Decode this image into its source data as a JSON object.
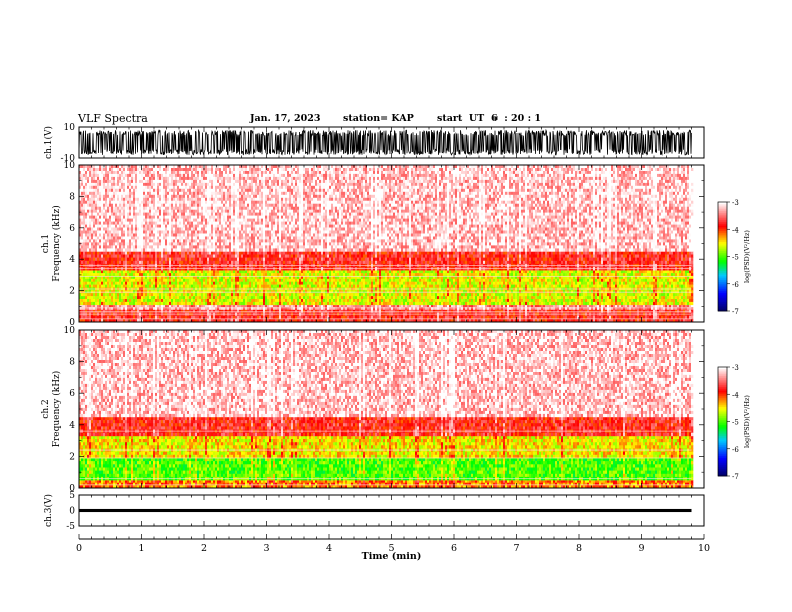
{
  "header": {
    "title": "VLF Spectra",
    "date": "Jan. 17, 2023",
    "station": "station= KAP",
    "start_label": "start  UT  =",
    "start_value": "6  : 20 : 1"
  },
  "chart_data": [
    {
      "type": "line",
      "panel": "ch1-waveform",
      "ylabel": "ch.1(V)",
      "ylim": [
        -10,
        10
      ],
      "yticks": [
        "10",
        "-10"
      ],
      "xlim": [
        0,
        10
      ],
      "data_extent_min": 9.8,
      "description_values": {
        "typical_min": -8,
        "typical_max": 8
      }
    },
    {
      "type": "heatmap",
      "panel": "ch1-spectrogram",
      "ylabel": "ch.1\nFrequency  (kHz)",
      "ylabel_lines": [
        "ch.1",
        "Frequency  (kHz)"
      ],
      "ylim": [
        0,
        10
      ],
      "yticks": [
        "0",
        "2",
        "4",
        "6",
        "8",
        "10"
      ],
      "xlim": [
        0,
        10
      ],
      "colorbar": {
        "label": "log(PSD)(V²/Hz)",
        "ticks": [
          "-3",
          "-4",
          "-5",
          "-6",
          "-7"
        ],
        "range": [
          -7,
          -3
        ]
      },
      "bands": [
        {
          "f_low": 0.0,
          "f_high": 0.8,
          "level": -3.8
        },
        {
          "f_low": 0.8,
          "f_high": 1.1,
          "level": -3.4
        },
        {
          "f_low": 1.1,
          "f_high": 3.3,
          "level": -4.6
        },
        {
          "f_low": 3.3,
          "f_high": 4.5,
          "level": -3.8
        },
        {
          "f_low": 4.5,
          "f_high": 10.0,
          "level": -3.2
        }
      ],
      "lines_khz": [
        0.2,
        0.5,
        0.65,
        0.9,
        1.9,
        2.1,
        2.9,
        3.4,
        3.6
      ]
    },
    {
      "type": "heatmap",
      "panel": "ch2-spectrogram",
      "ylabel": "ch.2\nFrequency  (kHz)",
      "ylabel_lines": [
        "ch.2",
        "Frequency  (kHz)"
      ],
      "ylim": [
        0,
        10
      ],
      "yticks": [
        "0",
        "2",
        "4",
        "6",
        "8",
        "10"
      ],
      "xlim": [
        0,
        10
      ],
      "colorbar": {
        "label": "log(PSD)(V²/Hz)",
        "ticks": [
          "-3",
          "-4",
          "-5",
          "-6",
          "-7"
        ],
        "range": [
          -7,
          -3
        ]
      },
      "bands": [
        {
          "f_low": 0.0,
          "f_high": 0.5,
          "level": -4.2
        },
        {
          "f_low": 0.5,
          "f_high": 1.9,
          "level": -5.0
        },
        {
          "f_low": 1.9,
          "f_high": 3.3,
          "level": -4.5
        },
        {
          "f_low": 3.3,
          "f_high": 4.5,
          "level": -3.8
        },
        {
          "f_low": 4.5,
          "f_high": 10.0,
          "level": -3.2
        }
      ],
      "lines_khz": [
        0.2,
        0.6,
        1.9,
        2.4,
        3.6
      ]
    },
    {
      "type": "line",
      "panel": "ch3-waveform",
      "ylabel": "ch.3(V)",
      "ylim": [
        -5,
        5
      ],
      "yticks": [
        "5",
        "0",
        "-5"
      ],
      "xlim": [
        0,
        10
      ],
      "xticks": [
        "0",
        "1",
        "2",
        "3",
        "4",
        "5",
        "6",
        "7",
        "8",
        "9",
        "10"
      ],
      "xlabel": "Time  (min)",
      "level_min": -0.5,
      "level_max": 0.5
    }
  ],
  "colors": {
    "psd_high": "#ff0000",
    "psd_mid": "#ffff00",
    "psd_low": "#00ff00",
    "trace": "#000000",
    "background": "#ffffff"
  }
}
